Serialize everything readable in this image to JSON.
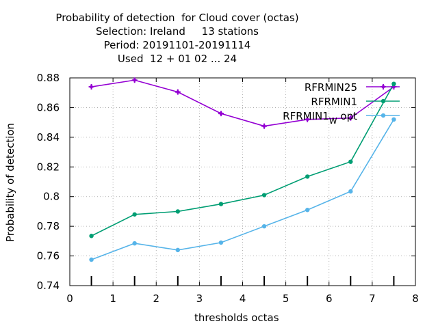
{
  "chart_data": {
    "type": "line",
    "title_lines": [
      "Probability of detection  for Cloud cover (octas)",
      "Selection: Ireland     13 stations",
      "Period: 20191101-20191114",
      "Used  12 + 01 02 ... 24"
    ],
    "xlabel": "thresholds octas",
    "ylabel": "Probability of detection",
    "xlim": [
      0,
      8
    ],
    "ylim": [
      0.74,
      0.88
    ],
    "xticks": [
      0,
      1,
      2,
      3,
      4,
      5,
      6,
      7,
      8
    ],
    "xtick_labels": [
      "0",
      "1",
      "2",
      "3",
      "4",
      "5",
      "6",
      "7",
      "8"
    ],
    "yticks": [
      0.74,
      0.76,
      0.78,
      0.8,
      0.82,
      0.84,
      0.86,
      0.88
    ],
    "ytick_labels": [
      "0.74",
      "0.76",
      "0.78",
      "0.8",
      "0.82",
      "0.84",
      "0.86",
      "0.88"
    ],
    "grid": true,
    "legend_position": "top-right",
    "x": [
      0.5,
      1.5,
      2.5,
      3.5,
      4.5,
      5.5,
      6.5,
      7.5
    ],
    "series": [
      {
        "name": "RFRMIN25",
        "color": "#9400d3",
        "values": [
          0.874,
          0.8785,
          0.8705,
          0.856,
          0.8475,
          0.852,
          0.853,
          0.874
        ]
      },
      {
        "name": "RFRMIN1",
        "color": "#009e73",
        "values": [
          0.7735,
          0.788,
          0.79,
          0.795,
          0.801,
          0.8135,
          0.8235,
          0.876
        ]
      },
      {
        "name": "RFRMIN1",
        "name_subscript": "W",
        "name_suffix": " opt",
        "color": "#56b4e9",
        "values": [
          0.7575,
          0.7685,
          0.764,
          0.769,
          0.78,
          0.791,
          0.8035,
          0.852
        ]
      }
    ]
  }
}
